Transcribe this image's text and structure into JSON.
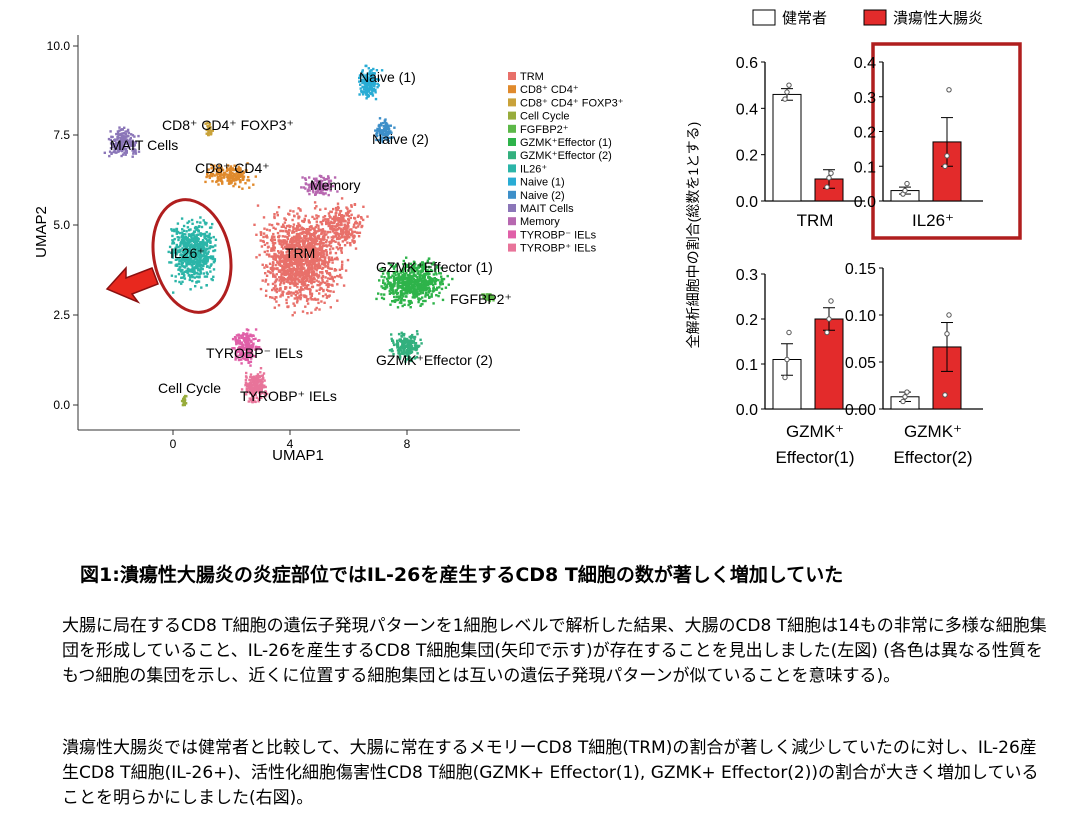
{
  "figure": {
    "umap": {
      "xlabel": "UMAP1",
      "ylabel": "UMAP2",
      "xticks": [
        "0",
        "4",
        "8"
      ],
      "yticks": [
        "0.0",
        "2.5",
        "5.0",
        "7.5",
        "10.0"
      ],
      "cluster_labels": {
        "mait": "MAIT Cells",
        "cd8cd4foxp3": "CD8⁺ CD4⁺ FOXP3⁺",
        "cd8cd4": "CD8⁺ CD4⁺",
        "il26": "IL26⁺",
        "trm": "TRM",
        "memory": "Memory",
        "naive1": "Naive (1)",
        "naive2": "Naive (2)",
        "gzmk1": "GZMK⁺Effector (1)",
        "fgfbp2": "FGFBP2⁺",
        "gzmk2": "GZMK⁺Effector (2)",
        "tyrobp_neg": "TYROBP⁻ IELs",
        "tyrobp_pos": "TYROBP⁺ IELs",
        "cellcycle": "Cell Cycle"
      },
      "legend": [
        {
          "label": "TRM",
          "color": "#e8706a"
        },
        {
          "label": "CD8⁺ CD4⁺",
          "color": "#e08a2c"
        },
        {
          "label": "CD8⁺ CD4⁺ FOXP3⁺",
          "color": "#c9a23a"
        },
        {
          "label": "Cell Cycle",
          "color": "#98ac3c"
        },
        {
          "label": "FGFBP2⁺",
          "color": "#5cb848"
        },
        {
          "label": "GZMK⁺Effector (1)",
          "color": "#2eb34a"
        },
        {
          "label": "GZMK⁺Effector (2)",
          "color": "#33b07e"
        },
        {
          "label": "IL26⁺",
          "color": "#2bb5a8"
        },
        {
          "label": "Naive (1)",
          "color": "#29acd4"
        },
        {
          "label": "Naive (2)",
          "color": "#3d8fc9"
        },
        {
          "label": "MAIT Cells",
          "color": "#8b76b8"
        },
        {
          "label": "Memory",
          "color": "#b768b0"
        },
        {
          "label": "TYROBP⁻ IELs",
          "color": "#e060a8"
        },
        {
          "label": "TYROBP⁺ IELs",
          "color": "#e8749a"
        }
      ]
    },
    "bar_legend": {
      "healthy": "健常者",
      "uc": "潰瘍性大腸炎",
      "healthy_color": "#ffffff",
      "uc_color": "#e32b2b"
    },
    "bar_ylabel": "全解析細胞中の割合(総数を1とする)",
    "highlight_color": "#b01e1e"
  },
  "chart_data": [
    {
      "type": "bar",
      "name_label": "TRM",
      "categories": [
        "健常者",
        "潰瘍性大腸炎"
      ],
      "values": [
        0.46,
        0.095
      ],
      "errors": [
        0.025,
        0.04
      ],
      "points": [
        [
          0.44,
          0.47,
          0.5
        ],
        [
          0.06,
          0.1,
          0.12
        ]
      ],
      "ylim": [
        0,
        0.6
      ],
      "yticks": [
        "0.0",
        "0.2",
        "0.4",
        "0.6"
      ]
    },
    {
      "type": "bar",
      "name_label": "IL26⁺",
      "categories": [
        "健常者",
        "潰瘍性大腸炎"
      ],
      "values": [
        0.03,
        0.17
      ],
      "errors": [
        0.01,
        0.07
      ],
      "points": [
        [
          0.02,
          0.03,
          0.05
        ],
        [
          0.1,
          0.13,
          0.32
        ]
      ],
      "ylim": [
        0,
        0.4
      ],
      "yticks": [
        "0.0",
        "0.1",
        "0.2",
        "0.3",
        "0.4"
      ],
      "highlighted": true
    },
    {
      "type": "bar",
      "name_label": "GZMK⁺ Effector(1)",
      "categories": [
        "健常者",
        "潰瘍性大腸炎"
      ],
      "values": [
        0.11,
        0.2
      ],
      "errors": [
        0.035,
        0.025
      ],
      "points": [
        [
          0.07,
          0.11,
          0.17
        ],
        [
          0.17,
          0.2,
          0.24
        ]
      ],
      "ylim": [
        0,
        0.3
      ],
      "yticks": [
        "0.0",
        "0.1",
        "0.2",
        "0.3"
      ]
    },
    {
      "type": "bar",
      "name_label": "GZMK⁺ Effector(2)",
      "categories": [
        "健常者",
        "潰瘍性大腸炎"
      ],
      "values": [
        0.013,
        0.066
      ],
      "errors": [
        0.005,
        0.026
      ],
      "points": [
        [
          0.008,
          0.013,
          0.018
        ],
        [
          0.015,
          0.08,
          0.1
        ]
      ],
      "ylim": [
        0,
        0.15
      ],
      "yticks": [
        "0.00",
        "0.05",
        "0.10",
        "0.15"
      ]
    }
  ],
  "caption": {
    "title": "図1:潰瘍性大腸炎の炎症部位ではIL-26を産生するCD8 T細胞の数が著しく増加していた",
    "p1": "大腸に局在するCD8 T細胞の遺伝子発現パターンを1細胞レベルで解析した結果、大腸のCD8 T細胞は14もの非常に多様な細胞集団を形成していること、IL-26を産生するCD8 T細胞集団(矢印で示す)が存在することを見出しました(左図) (各色は異なる性質をもつ細胞の集団を示し、近くに位置する細胞集団とは互いの遺伝子発現パターンが似ていることを意味する)。",
    "p2": "潰瘍性大腸炎では健常者と比較して、大腸に常在するメモリーCD8 T細胞(TRM)の割合が著しく減少していたのに対し、IL-26産生CD8 T細胞(IL-26+)、活性化細胞傷害性CD8 T細胞(GZMK+ Effector(1), GZMK+ Effector(2))の割合が大きく増加していることを明らかにしました(右図)。"
  }
}
